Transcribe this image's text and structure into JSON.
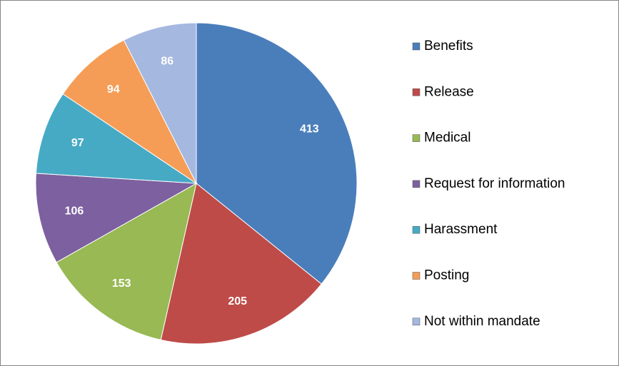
{
  "chart_data": {
    "type": "pie",
    "categories": [
      "Benefits",
      "Release",
      "Medical",
      "Request for information",
      "Harassment",
      "Posting",
      "Not within mandate"
    ],
    "values": [
      413,
      205,
      153,
      106,
      97,
      94,
      86
    ],
    "colors": [
      "#4a7ebb",
      "#be4b48",
      "#98b954",
      "#7d60a0",
      "#46aac5",
      "#f59d56",
      "#a5b8e0"
    ],
    "legend": "right"
  }
}
